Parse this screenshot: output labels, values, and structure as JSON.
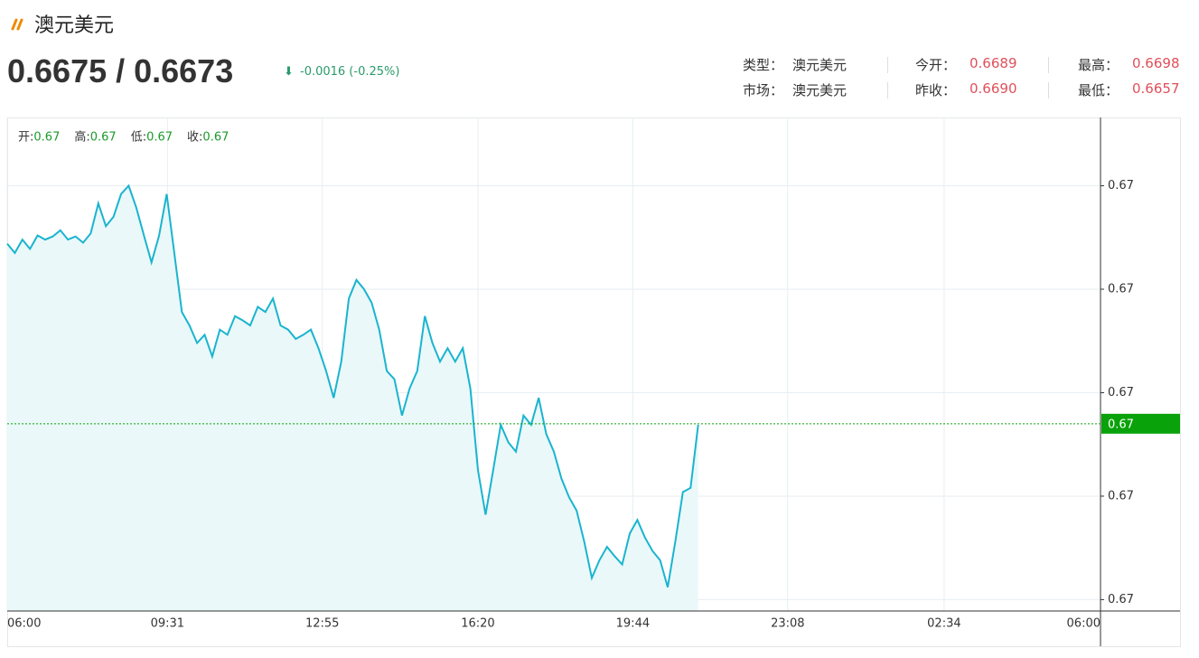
{
  "header": {
    "title": "澳元美元",
    "price": "0.6675 / 0.6673",
    "change": "-0.0016 (-0.25%)",
    "info": [
      [
        {
          "label": "类型：",
          "value": "澳元美元"
        },
        {
          "label": "今开：",
          "value": "0.6689"
        },
        {
          "label": "最高：",
          "value": "0.6698"
        }
      ],
      [
        {
          "label": "市场：",
          "value": "澳元美元"
        },
        {
          "label": "昨收：",
          "value": "0.6690"
        },
        {
          "label": "最低：",
          "value": "0.6657"
        }
      ]
    ]
  },
  "chart_data": {
    "type": "line",
    "ohlc": [
      {
        "label": "开:",
        "value": 0.67
      },
      {
        "label": "高:",
        "value": 0.67
      },
      {
        "label": "低:",
        "value": 0.67
      },
      {
        "label": "收:",
        "value": 0.67
      }
    ],
    "x": [
      0,
      10,
      20,
      30,
      40,
      50,
      60,
      70,
      80,
      90,
      100,
      110,
      120,
      130,
      140,
      150,
      160,
      170,
      180,
      190,
      200,
      210,
      220,
      230,
      240,
      250,
      260,
      270,
      280,
      290,
      300,
      310,
      320,
      330,
      340,
      350,
      360,
      370,
      380,
      390,
      400,
      410,
      420,
      430,
      440,
      450,
      460,
      470,
      480,
      490,
      500,
      510,
      520,
      530,
      540,
      550,
      560,
      570,
      580,
      590,
      600,
      610,
      620,
      630,
      640,
      650,
      660,
      670,
      680,
      690,
      700,
      710,
      720,
      730,
      740,
      750,
      760,
      770,
      780,
      790,
      800,
      810,
      820,
      830,
      840,
      850,
      860,
      870,
      880,
      890,
      900,
      910
    ],
    "series": [
      {
        "color": "#1ab4cf",
        "values": [
          0.66914,
          0.66905,
          0.66918,
          0.66909,
          0.66922,
          0.66918,
          0.66921,
          0.66927,
          0.66918,
          0.66921,
          0.66915,
          0.66924,
          0.66953,
          0.66931,
          0.6694,
          0.66962,
          0.6697,
          0.66949,
          0.66922,
          0.66896,
          0.66922,
          0.66962,
          0.66905,
          0.66848,
          0.66835,
          0.66818,
          0.66826,
          0.66805,
          0.66831,
          0.66826,
          0.66844,
          0.6684,
          0.66835,
          0.66853,
          0.66848,
          0.66861,
          0.66835,
          0.66831,
          0.66822,
          0.66826,
          0.66831,
          0.66813,
          0.66791,
          0.66765,
          0.668,
          0.66861,
          0.66879,
          0.6687,
          0.66857,
          0.66831,
          0.66791,
          0.66783,
          0.66748,
          0.66774,
          0.66791,
          0.66844,
          0.66818,
          0.668,
          0.66813,
          0.668,
          0.66813,
          0.66774,
          0.66695,
          0.66652,
          0.66695,
          0.66739,
          0.66722,
          0.66713,
          0.66748,
          0.66739,
          0.66765,
          0.6673,
          0.66713,
          0.66687,
          0.66669,
          0.66656,
          0.66626,
          0.66591,
          0.66608,
          0.66621,
          0.66612,
          0.66604,
          0.66634,
          0.66647,
          0.6663,
          0.66617,
          0.66608,
          0.66582,
          0.66626,
          0.66674,
          0.66678,
          0.66739
        ]
      }
    ],
    "area_color": "#eaf8f9",
    "xlim": [
      0,
      1440
    ],
    "xticks": [
      {
        "value": 0,
        "label": "06:00"
      },
      {
        "value": 211,
        "label": "09:31"
      },
      {
        "value": 415,
        "label": "12:55"
      },
      {
        "value": 620,
        "label": "16:20"
      },
      {
        "value": 824,
        "label": "19:44"
      },
      {
        "value": 1028,
        "label": "23:08"
      },
      {
        "value": 1234,
        "label": "02:34"
      },
      {
        "value": 1440,
        "label": "06:00"
      }
    ],
    "ylim": [
      0.66559,
      0.67036
    ],
    "yticks": [
      {
        "value": 0.6697,
        "label": "0.67"
      },
      {
        "value": 0.6687,
        "label": "0.67"
      },
      {
        "value": 0.6677,
        "label": "0.67"
      },
      {
        "value": 0.6667,
        "label": "0.67"
      },
      {
        "value": 0.6657,
        "label": "0.67"
      }
    ],
    "grid": true,
    "last": {
      "value": 0.6674,
      "label": "0.67",
      "color": "#0aa20a"
    }
  }
}
